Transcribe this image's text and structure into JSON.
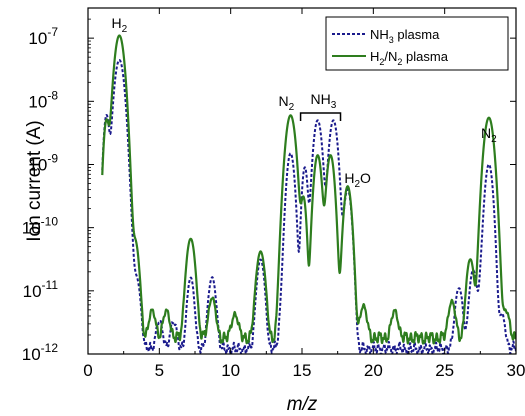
{
  "chart_data": {
    "type": "line",
    "xlabel": "m/z",
    "ylabel": "Ion current (A)",
    "xlim": [
      0,
      30
    ],
    "ylim": [
      1e-12,
      3e-07
    ],
    "yscale": "log",
    "x_ticks": [
      "0",
      "5",
      "10",
      "15",
      "20",
      "25",
      "30"
    ],
    "y_ticks": [
      {
        "base": "10",
        "exp": "-12"
      },
      {
        "base": "10",
        "exp": "-11"
      },
      {
        "base": "10",
        "exp": "-10"
      },
      {
        "base": "10",
        "exp": "-9"
      },
      {
        "base": "10",
        "exp": "-8"
      },
      {
        "base": "10",
        "exp": "-7"
      }
    ],
    "legend_position": "top-right",
    "annotations": [
      {
        "base": "H",
        "sub": "2",
        "tail": "",
        "x": 2.2
      },
      {
        "base": "N",
        "sub": "2",
        "tail": "",
        "x": 14.2
      },
      {
        "base": "NH",
        "sub": "3",
        "tail": "",
        "x": 16.5
      },
      {
        "base": "H",
        "sub": "2",
        "tail": "O",
        "x": 18.3
      },
      {
        "base": "N",
        "sub": "2",
        "tail": "",
        "x": 28.1
      }
    ],
    "series": [
      {
        "name": {
          "base": "NH",
          "sub": "3",
          "tail": " plasma"
        },
        "color": "#1a1a8c",
        "style": "dotted",
        "baseline": 1.2e-12,
        "peaks": [
          [
            1.3,
            6e-09,
            0.15
          ],
          [
            2.2,
            4.5e-08,
            0.25
          ],
          [
            3.0,
            3e-11,
            0.15
          ],
          [
            3.4,
            1.5e-11,
            0.2
          ],
          [
            5.0,
            2e-12,
            0.2
          ],
          [
            6.0,
            2e-12,
            0.2
          ],
          [
            7.2,
            1.5e-11,
            0.18
          ],
          [
            8.7,
            1.5e-11,
            0.2
          ],
          [
            12.1,
            3e-11,
            0.2
          ],
          [
            13.6,
            4e-12,
            0.15
          ],
          [
            14.2,
            1.5e-09,
            0.2
          ],
          [
            15.2,
            9e-10,
            0.15
          ],
          [
            16.1,
            5e-09,
            0.22
          ],
          [
            17.2,
            5e-09,
            0.22
          ],
          [
            18.2,
            4e-10,
            0.2
          ],
          [
            26.0,
            1e-11,
            0.2
          ],
          [
            27.0,
            2e-11,
            0.2
          ],
          [
            27.6,
            1.5e-11,
            0.15
          ],
          [
            28.1,
            1e-09,
            0.2
          ],
          [
            29.0,
            3e-12,
            0.2
          ]
        ]
      },
      {
        "name": {
          "base": "H",
          "sub": "2",
          "tail": "/N",
          "sub2": "2",
          "tail2": " plasma"
        },
        "color": "#2e7d1e",
        "style": "solid",
        "baseline": 1.8e-12,
        "peaks": [
          [
            1.3,
            5e-09,
            0.15
          ],
          [
            2.2,
            1.1e-07,
            0.25
          ],
          [
            3.3,
            6e-11,
            0.2
          ],
          [
            4.5,
            3e-12,
            0.2
          ],
          [
            5.5,
            3e-12,
            0.2
          ],
          [
            7.2,
            6.5e-11,
            0.22
          ],
          [
            8.7,
            6e-12,
            0.2
          ],
          [
            10.3,
            2.5e-12,
            0.2
          ],
          [
            12.1,
            4e-11,
            0.22
          ],
          [
            14.2,
            6e-09,
            0.25
          ],
          [
            15.1,
            3e-10,
            0.15
          ],
          [
            16.1,
            1.4e-09,
            0.2
          ],
          [
            17.0,
            1.4e-09,
            0.2
          ],
          [
            18.2,
            4.5e-10,
            0.2
          ],
          [
            19.3,
            4e-12,
            0.2
          ],
          [
            21.5,
            3e-12,
            0.2
          ],
          [
            25.5,
            5e-12,
            0.2
          ],
          [
            26.8,
            3e-11,
            0.2
          ],
          [
            28.1,
            5.5e-09,
            0.25
          ],
          [
            29.3,
            3e-12,
            0.2
          ]
        ]
      }
    ]
  }
}
